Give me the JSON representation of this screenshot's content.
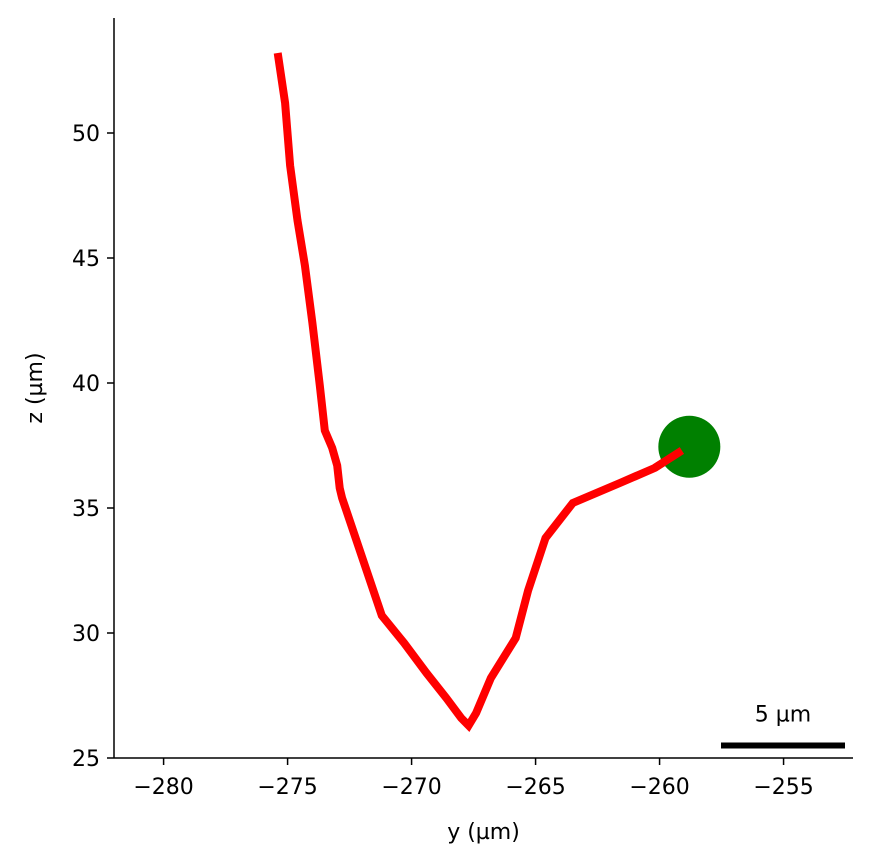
{
  "chart_data": {
    "type": "line",
    "xlabel": "y (µm)",
    "ylabel": "z (µm)",
    "xlim": [
      -282,
      -252.2
    ],
    "ylim": [
      25,
      54.6
    ],
    "xticks": [
      -280,
      -275,
      -270,
      -265,
      -260,
      -255
    ],
    "yticks": [
      25,
      30,
      35,
      40,
      45,
      50
    ],
    "xtick_labels": [
      "−280",
      "−275",
      "−270",
      "−265",
      "−260",
      "−255"
    ],
    "ytick_labels": [
      "25",
      "30",
      "35",
      "40",
      "45",
      "50"
    ],
    "grid": false,
    "series": [
      {
        "color": "#ff0000",
        "x": [
          -275.4,
          -275.1,
          -274.9,
          -274.6,
          -274.3,
          -274.0,
          -273.7,
          -273.5,
          -273.2,
          -273.0,
          -272.9,
          -272.8,
          -271.2,
          -270.3,
          -269.4,
          -268.6,
          -268.0,
          -267.7,
          -267.4,
          -266.8,
          -265.8,
          -265.3,
          -264.6,
          -263.5,
          -261.6,
          -260.2,
          -259.1
        ],
        "y": [
          53.2,
          51.2,
          48.7,
          46.5,
          44.7,
          42.4,
          39.9,
          38.1,
          37.4,
          36.7,
          35.8,
          35.4,
          30.7,
          29.6,
          28.4,
          27.4,
          26.6,
          26.3,
          26.8,
          28.2,
          29.8,
          31.7,
          33.8,
          35.2,
          36.0,
          36.6,
          37.3
        ]
      }
    ],
    "marker": {
      "x": -258.8,
      "y": 37.45,
      "color": "#008000",
      "shape": "circle"
    },
    "scalebar": {
      "length": 5,
      "label": "5 µm",
      "y": 25.5
    }
  }
}
